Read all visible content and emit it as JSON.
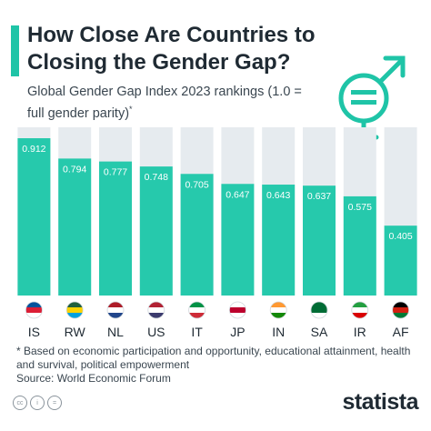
{
  "header": {
    "title": "How Close Are Countries to Closing the Gender Gap?",
    "subtitle": "Global Gender Gap Index 2023 rankings (1.0 = full gender parity)",
    "subtitle_marker": "*"
  },
  "colors": {
    "accent": "#1fc4a7",
    "bar": "#26c9ac",
    "track": "#e6ebef",
    "text_dark": "#1f2a33",
    "value_label": "#ffffff"
  },
  "icons": [
    "gender-equality-icon",
    "flag-is-icon",
    "flag-rw-icon",
    "flag-nl-icon",
    "flag-us-icon",
    "flag-it-icon",
    "flag-jp-icon",
    "flag-in-icon",
    "flag-sa-icon",
    "flag-ir-icon",
    "flag-af-icon",
    "creative-commons-icon",
    "statista-logo"
  ],
  "chart_data": {
    "type": "bar",
    "title": "How Close Are Countries to Closing the Gender Gap?",
    "subtitle": "Global Gender Gap Index 2023 rankings (1.0 = full gender parity)",
    "categories": [
      "IS",
      "RW",
      "NL",
      "US",
      "IT",
      "JP",
      "IN",
      "SA",
      "IR",
      "AF"
    ],
    "values": [
      0.912,
      0.794,
      0.777,
      0.748,
      0.705,
      0.647,
      0.643,
      0.637,
      0.575,
      0.405
    ],
    "value_labels": [
      "0.912",
      "0.794",
      "0.777",
      "0.748",
      "0.705",
      "0.647",
      "0.643",
      "0.637",
      "0.575",
      "0.405"
    ],
    "ylim": [
      0,
      1.0
    ],
    "xlabel": "",
    "ylabel": "",
    "grid": false,
    "legend": "none"
  },
  "footer": {
    "note": "* Based on economic participation and opportunity, educational attainment, health and survival, political empowerment",
    "source": "Source: World Economic Forum",
    "brand": "statista"
  }
}
